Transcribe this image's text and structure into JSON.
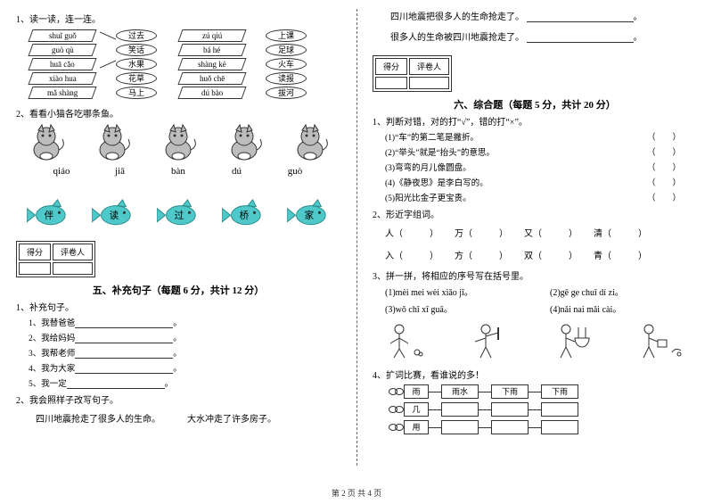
{
  "footer": "第 2 页  共 4 页",
  "left": {
    "q1": {
      "num": "1、读一读，连一连。",
      "pairs_left": [
        {
          "py": "shuǐ guǒ",
          "cn": "过去"
        },
        {
          "py": "guò qù",
          "cn": "笑话"
        },
        {
          "py": "huā cǎo",
          "cn": "水果"
        },
        {
          "py": "xiào hua",
          "cn": "花草"
        },
        {
          "py": "mǎ shàng",
          "cn": "马上"
        }
      ],
      "pairs_right": [
        {
          "py": "zú qiú",
          "cn": "上课"
        },
        {
          "py": "bá hé",
          "cn": "足球"
        },
        {
          "py": "shàng kè",
          "cn": "火车"
        },
        {
          "py": "huǒ chē",
          "cn": "读报"
        },
        {
          "py": "dú bào",
          "cn": "拔河"
        }
      ]
    },
    "q2": {
      "num": "2、看看小猫各吃哪条鱼。",
      "cats_pinyin": [
        "qiáo",
        "jiā",
        "bàn",
        "dú",
        "guò"
      ],
      "fish_chars": [
        "伴",
        "读",
        "过",
        "桥",
        "家"
      ],
      "fish_color": "#4ec8c8"
    },
    "score_labels": {
      "score": "得分",
      "grader": "评卷人"
    },
    "sec5_title": "五、补充句子（每题 6 分，共计 12 分）",
    "q5_1": {
      "num": "1、补充句子。",
      "items": [
        "1、我替爸爸",
        "2、我给妈妈",
        "3、我帮老师",
        "4、我为大家",
        "5、我一定"
      ]
    },
    "q5_2": {
      "num": "2、我会照样子改写句子。",
      "ex_a": "四川地震抢走了很多人的生命。",
      "ex_b": "大水冲走了许多房子。"
    }
  },
  "right": {
    "cont_lines": [
      "四川地震把很多人的生命抢走了。",
      "很多人的生命被四川地震抢走了。"
    ],
    "score_labels": {
      "score": "得分",
      "grader": "评卷人"
    },
    "sec6_title": "六、综合题（每题 5 分，共计 20 分）",
    "q1": {
      "num": "1、判断对错，对的打“√”，错的打“×”。",
      "items": [
        "(1)“车”的第二笔是撇折。",
        "(2)“举头”就是“抬头”的意思。",
        "(3)弯弯的月儿像圆盘。",
        "(4)《静夜思》是李白写的。",
        "(5)阳光比金子更宝贵。"
      ]
    },
    "q2": {
      "num": "2、形近字组词。",
      "row1": [
        "人",
        "万",
        "又",
        "清"
      ],
      "row2": [
        "入",
        "方",
        "双",
        "青"
      ]
    },
    "q3": {
      "num": "3、拼一拼，将相应的序号写在括号里。",
      "items": [
        "(1)mèi  mei  wèi  xiǎo  jī。",
        "(2)gē  ge  chuī  dí  zi。",
        "(3)wǒ chī  xī  guā。",
        "(4)nǎi  nai  mǎi  cài。"
      ]
    },
    "q4": {
      "num": "4、扩词比赛，看谁说的多！",
      "starters": [
        "雨",
        "几",
        "用"
      ],
      "example": [
        "雨水",
        "下雨",
        "下雨"
      ]
    }
  }
}
